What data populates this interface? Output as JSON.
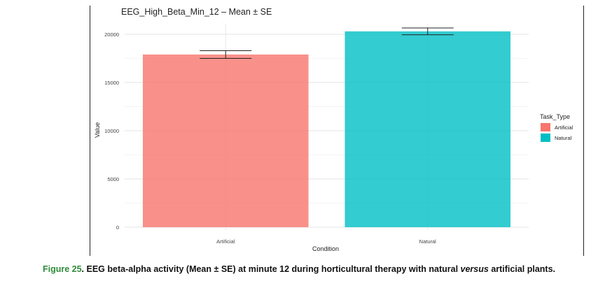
{
  "chart_data": {
    "type": "bar",
    "title": "EEG_High_Beta_Min_12 – Mean ± SE",
    "xlabel": "Condition",
    "ylabel": "Value",
    "categories": [
      "Artificial",
      "Natural"
    ],
    "values": [
      17900,
      20300
    ],
    "errors": [
      400,
      350
    ],
    "ylim": [
      0,
      21000
    ],
    "yticks": [
      0,
      5000,
      10000,
      15000,
      20000
    ],
    "grid": true,
    "legend": {
      "title": "Task_Type",
      "placement": "right",
      "entries": [
        "Artificial",
        "Natural"
      ]
    },
    "colors": [
      "#f8766d",
      "#00bfc4"
    ]
  },
  "caption": {
    "label": "Figure 25",
    "text_before": ". EEG beta-alpha activity (Mean ± SE) at minute 12 during horticultural therapy with natural ",
    "emph": "versus",
    "text_after": " artificial plants."
  }
}
